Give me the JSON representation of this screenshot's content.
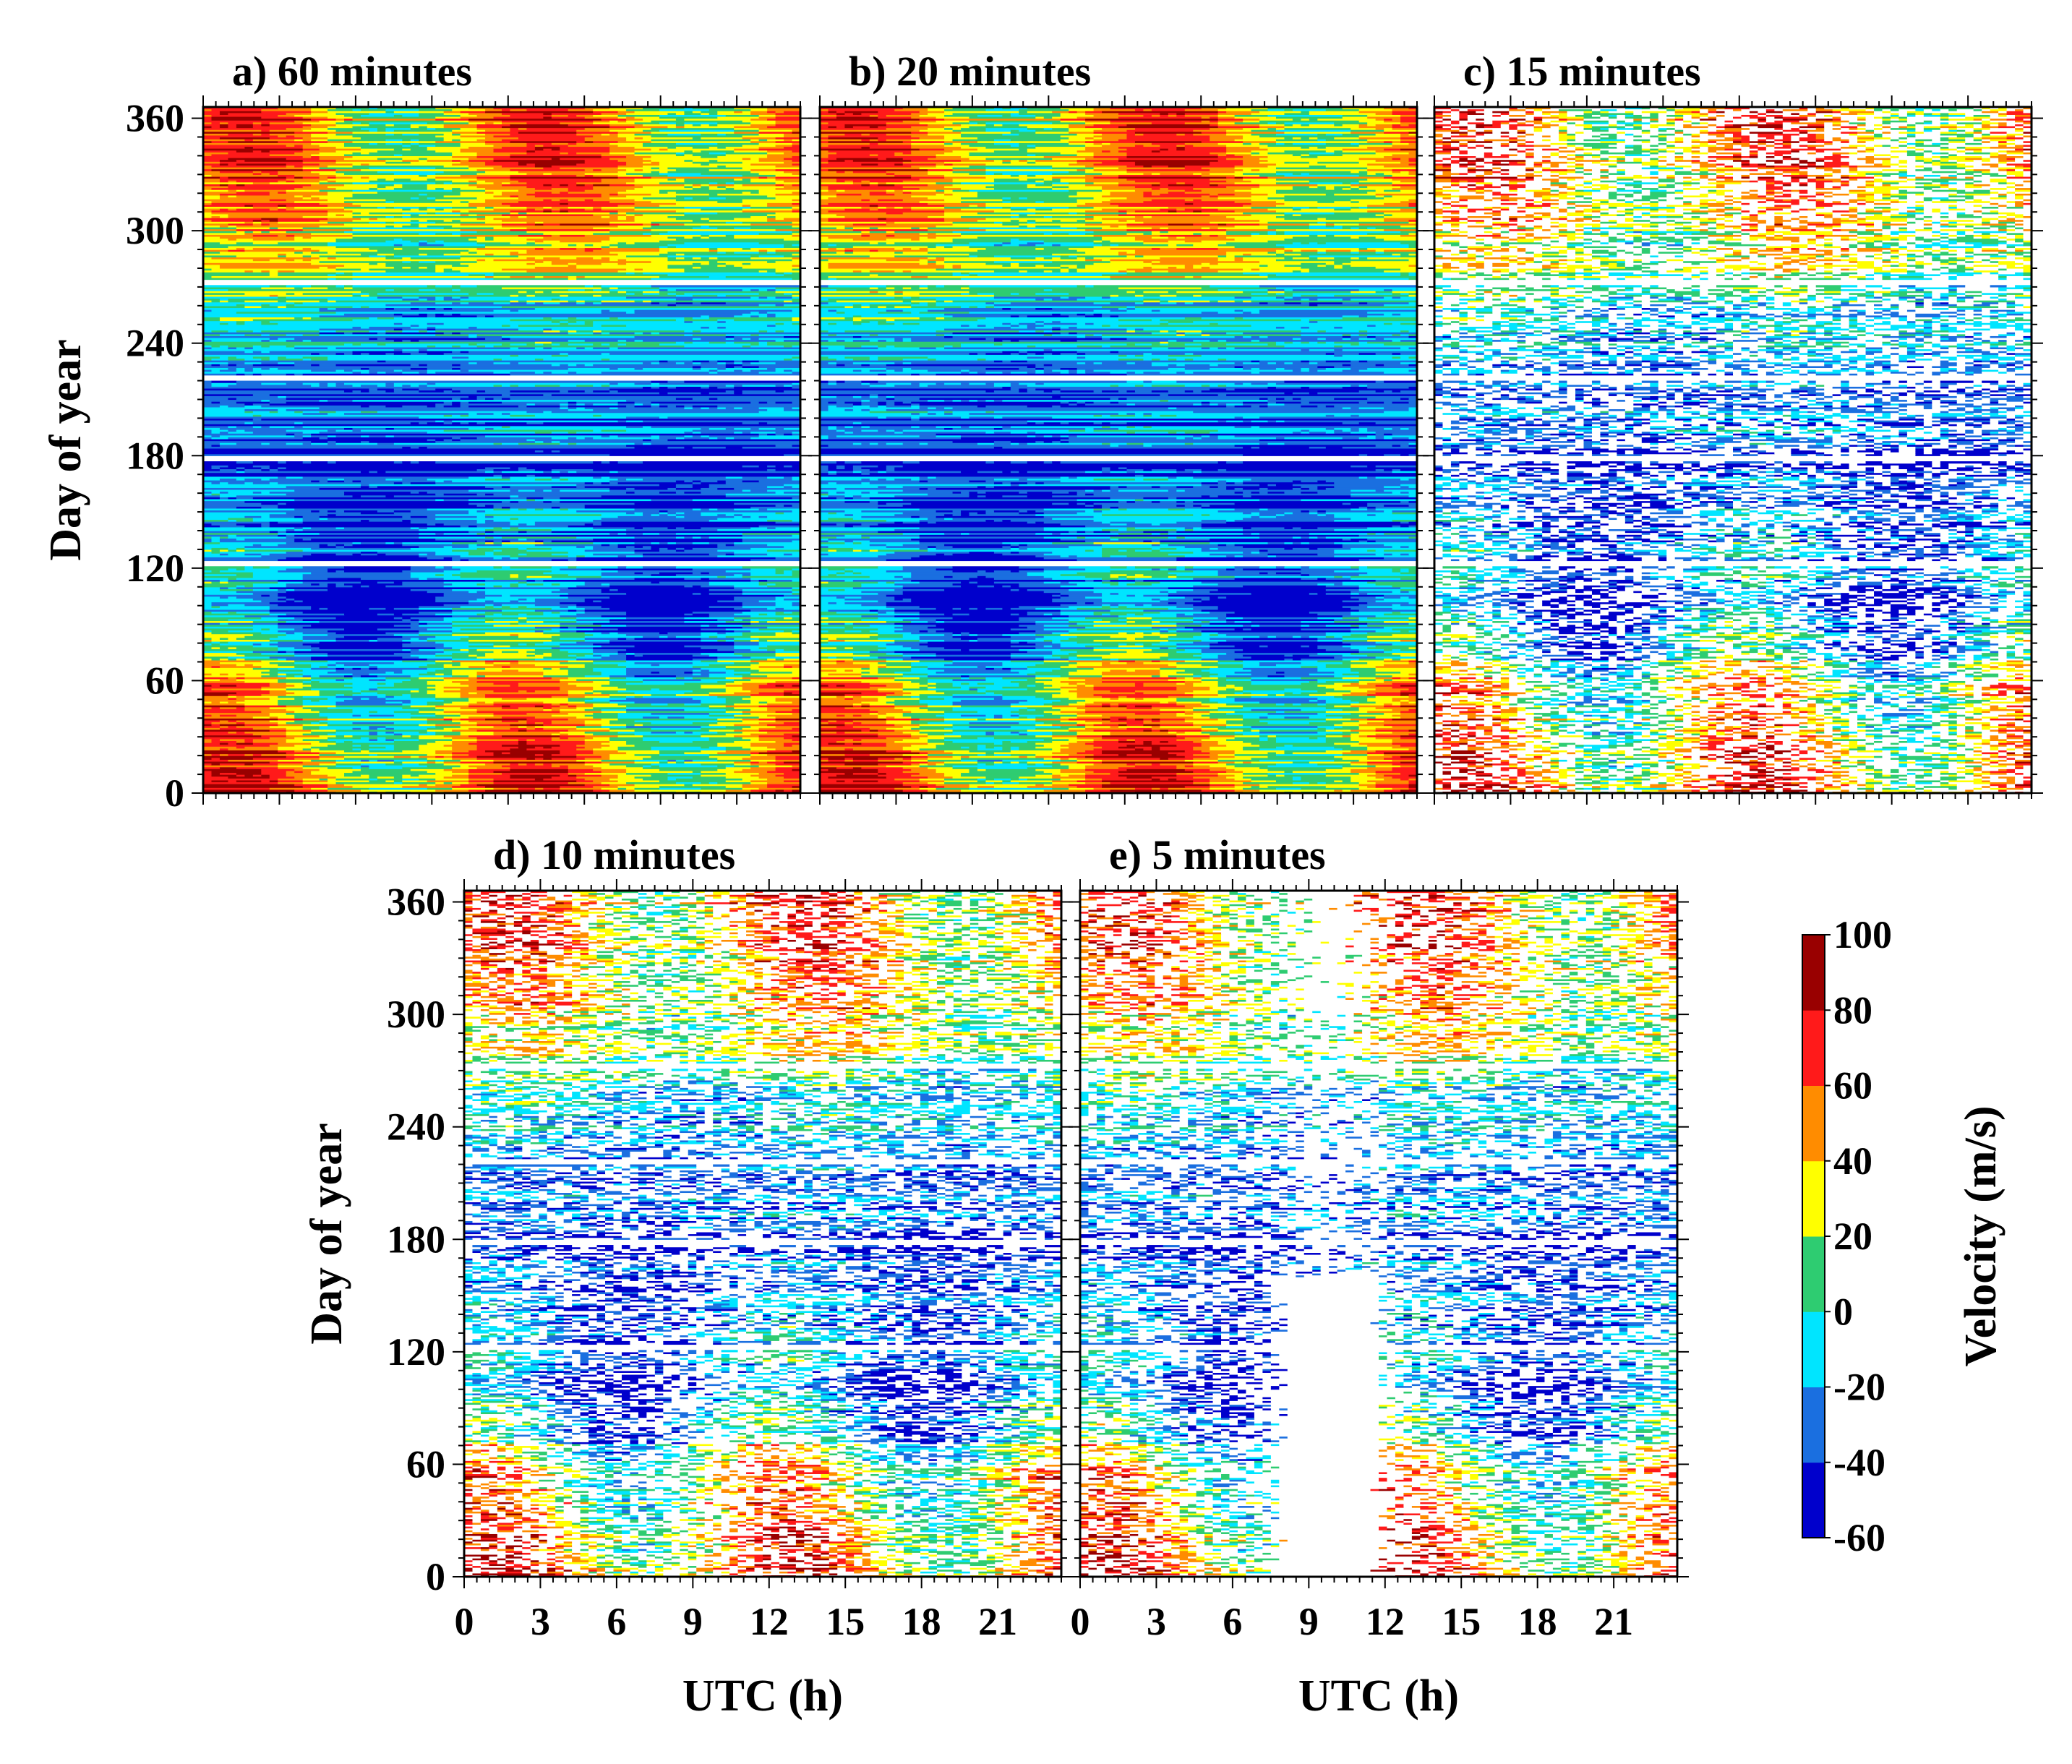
{
  "chart_data": [
    {
      "type": "heatmap",
      "title": "a) 60 minutes",
      "resolution_minutes": 60,
      "xlabel": "",
      "ylabel": "Day of year",
      "xlim": [
        0,
        23.5
      ],
      "ylim": [
        0,
        366
      ],
      "yticks": [
        0,
        60,
        120,
        180,
        240,
        300,
        360
      ],
      "ytick_labels": [
        "0",
        "60",
        "120",
        "180",
        "240",
        "300",
        "360"
      ],
      "xticks": [],
      "value_label": "Velocity (m/s)",
      "gap_fraction": 0.0
    },
    {
      "type": "heatmap",
      "title": "b) 20 minutes",
      "resolution_minutes": 20,
      "xlabel": "",
      "ylabel": "",
      "xlim": [
        0,
        23.5
      ],
      "ylim": [
        0,
        366
      ],
      "yticks": [],
      "xticks": [],
      "value_label": "Velocity (m/s)",
      "gap_fraction": 0.0
    },
    {
      "type": "heatmap",
      "title": "c) 15 minutes",
      "resolution_minutes": 15,
      "xlabel": "",
      "ylabel": "",
      "xlim": [
        0,
        23.5
      ],
      "ylim": [
        0,
        366
      ],
      "yticks": [],
      "xticks": [],
      "value_label": "Velocity (m/s)",
      "gap_fraction": 0.01
    },
    {
      "type": "heatmap",
      "title": "d) 10 minutes",
      "resolution_minutes": 10,
      "xlabel": "UTC (h)",
      "ylabel": "Day of year",
      "xlim": [
        0,
        23.5
      ],
      "ylim": [
        0,
        366
      ],
      "yticks": [
        0,
        60,
        120,
        180,
        240,
        300,
        360
      ],
      "ytick_labels": [
        "0",
        "60",
        "120",
        "180",
        "240",
        "300",
        "360"
      ],
      "xticks": [
        0,
        3,
        6,
        9,
        12,
        15,
        18,
        21
      ],
      "xtick_labels": [
        "0",
        "3",
        "6",
        "9",
        "12",
        "15",
        "18",
        "21"
      ],
      "value_label": "Velocity (m/s)",
      "gap_fraction": 0.04
    },
    {
      "type": "heatmap",
      "title": "e) 5 minutes",
      "resolution_minutes": 5,
      "xlabel": "UTC (h)",
      "ylabel": "",
      "xlim": [
        0,
        23.5
      ],
      "ylim": [
        0,
        366
      ],
      "yticks": [],
      "xticks": [
        0,
        3,
        6,
        9,
        12,
        15,
        18,
        21
      ],
      "xtick_labels": [
        "0",
        "3",
        "6",
        "9",
        "12",
        "15",
        "18",
        "21"
      ],
      "value_label": "Velocity (m/s)",
      "gap_fraction": 0.22
    }
  ],
  "colorbar": {
    "label": "Velocity (m/s)",
    "levels": [
      -60,
      -40,
      -20,
      0,
      20,
      40,
      60,
      80,
      100
    ],
    "tick_labels": [
      "-60",
      "-40",
      "-20",
      "0",
      "20",
      "40",
      "60",
      "80",
      "100"
    ],
    "colors": [
      "#0000cc",
      "#1a6fe0",
      "#00e5ff",
      "#2ecc71",
      "#ffff00",
      "#ff8c00",
      "#ff1a1a",
      "#990000"
    ]
  },
  "data_gaps_day_of_year": [
    122,
    178,
    221,
    272
  ]
}
